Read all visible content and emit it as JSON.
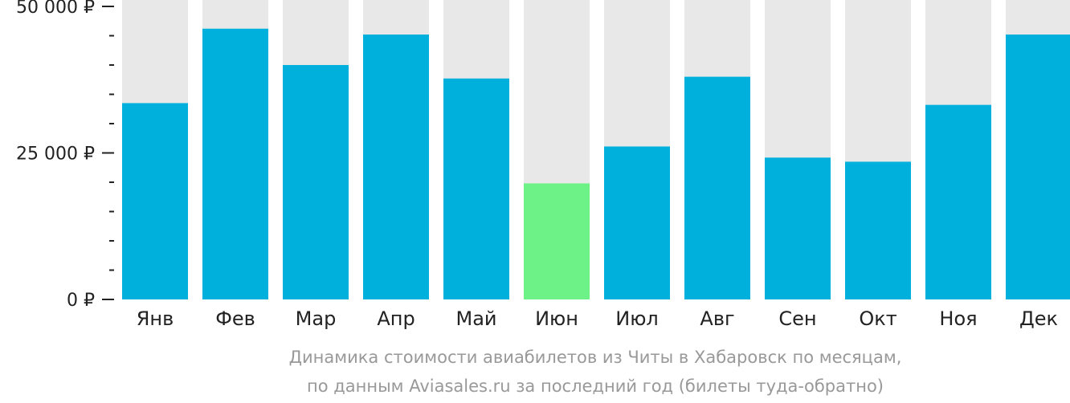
{
  "chart_data": {
    "type": "bar",
    "categories": [
      "Янв",
      "Фев",
      "Мар",
      "Апр",
      "Май",
      "Июн",
      "Июл",
      "Авг",
      "Сен",
      "Окт",
      "Ноя",
      "Дек"
    ],
    "values": [
      33500,
      46200,
      40000,
      45200,
      37700,
      19800,
      26100,
      38000,
      24200,
      23500,
      33200,
      45200
    ],
    "highlight_index": 5,
    "ylim": [
      0,
      50000
    ],
    "y_ticks": [
      {
        "value": 0,
        "label": "0 ₽"
      },
      {
        "value": 25000,
        "label": "25 000 ₽"
      },
      {
        "value": 50000,
        "label": "50 000 ₽"
      }
    ],
    "minor_tick_step": 5000,
    "caption_lines": [
      "Динамика стоимости авиабилетов из Читы в Хабаровск по месяцам,",
      "по данным Aviasales.ru за последний год (билеты туда-обратно)"
    ],
    "colors": {
      "bar": "#00b0dc",
      "highlight": "#6cf286",
      "background_bar": "#e8e8e8",
      "axis": "#222222"
    }
  }
}
